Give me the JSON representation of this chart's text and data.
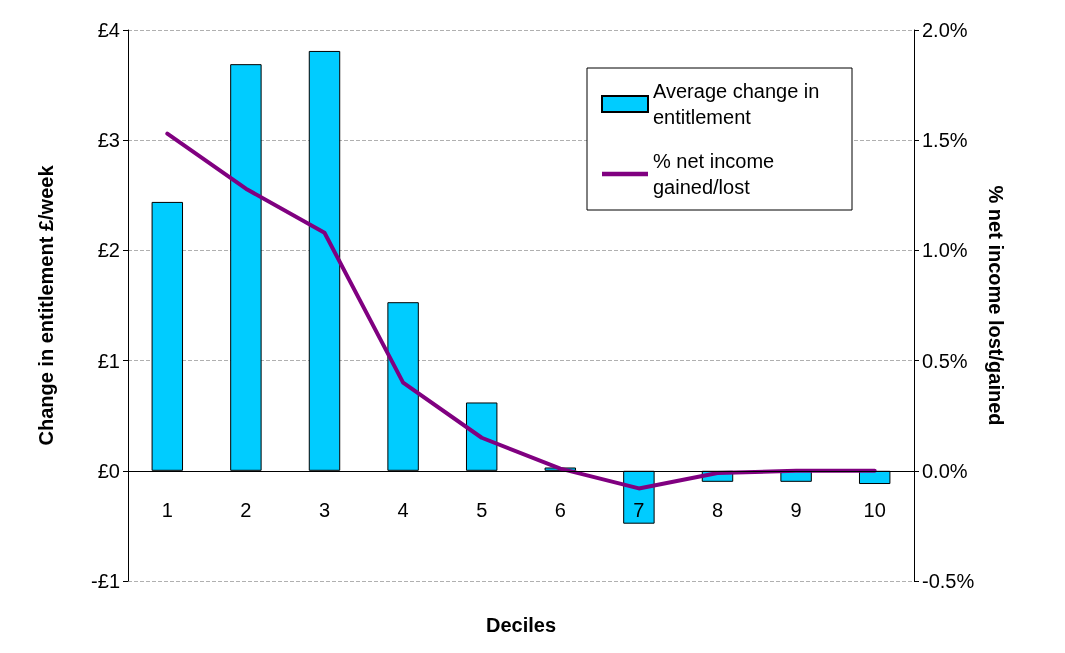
{
  "chart_data": {
    "type": "bar",
    "xlabel": "Deciles",
    "ylabel": "Change in entitlement £/week",
    "y2label": "% net income lost/gained",
    "categories": [
      "1",
      "2",
      "3",
      "4",
      "5",
      "6",
      "7",
      "8",
      "9",
      "10"
    ],
    "series": [
      {
        "name": "Average change in entitlement",
        "color": "#00ccff",
        "values": [
          2.44,
          3.69,
          3.81,
          1.53,
          0.62,
          0.03,
          -0.48,
          -0.1,
          -0.1,
          -0.12
        ]
      },
      {
        "name": "% net income gained/lost",
        "type": "line",
        "axis": "y2",
        "color": "#800080",
        "values": [
          1.53,
          1.28,
          1.08,
          0.4,
          0.15,
          0.01,
          -0.08,
          -0.01,
          0.0,
          0.0
        ]
      }
    ],
    "ylim": [
      -1,
      4
    ],
    "yticks": [
      {
        "value": -1,
        "label": "-£1"
      },
      {
        "value": 0,
        "label": "£0"
      },
      {
        "value": 1,
        "label": "£1"
      },
      {
        "value": 2,
        "label": "£2"
      },
      {
        "value": 3,
        "label": "£3"
      },
      {
        "value": 4,
        "label": "£4"
      }
    ],
    "y2lim": [
      -0.5,
      2
    ],
    "y2ticks": [
      {
        "value": -0.5,
        "label": "-0.5%"
      },
      {
        "value": 0,
        "label": "0.0%"
      },
      {
        "value": 0.5,
        "label": "0.5%"
      },
      {
        "value": 1,
        "label": "1.0%"
      },
      {
        "value": 1.5,
        "label": "1.5%"
      },
      {
        "value": 2,
        "label": "2.0%"
      }
    ],
    "grid": "y",
    "legend": "top right",
    "marker": "none",
    "line_style": "solid"
  }
}
